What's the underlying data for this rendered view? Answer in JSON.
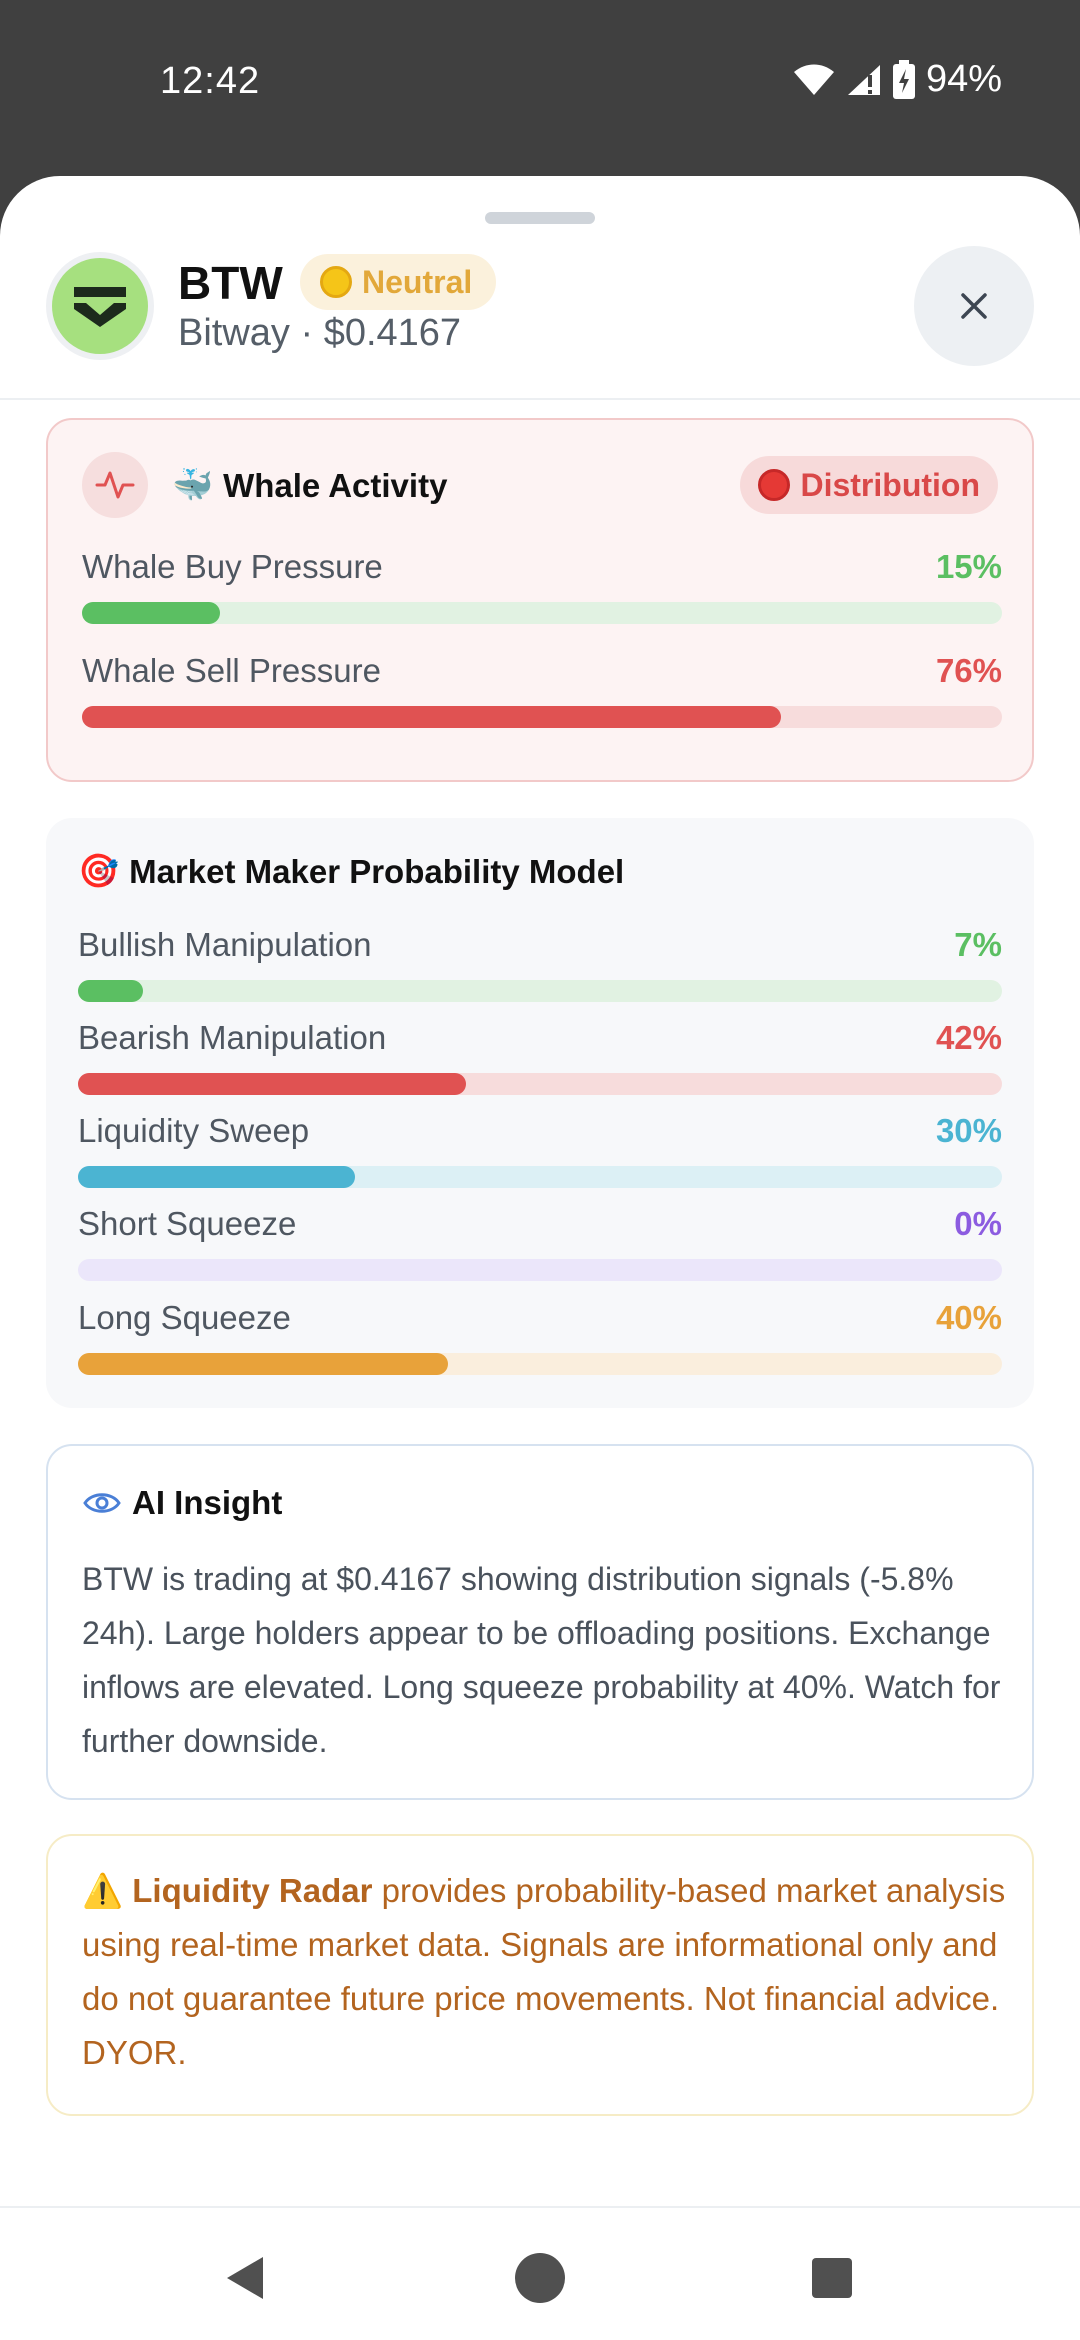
{
  "status_bar": {
    "time": "12:42",
    "battery": "94%"
  },
  "header": {
    "symbol": "BTW",
    "sentiment": "Neutral",
    "subtitle": "Bitway · $0.4167",
    "sentiment_color": "#e2a83a"
  },
  "whale": {
    "title": "Whale Activity",
    "title_emoji": "🐳",
    "badge": "Distribution",
    "metrics": [
      {
        "label": "Whale Buy Pressure",
        "value": "15%",
        "pct": 15,
        "color": "#5bbf62",
        "track": "#e1f2e2"
      },
      {
        "label": "Whale Sell Pressure",
        "value": "76%",
        "pct": 76,
        "color": "#e05252",
        "track": "#f7dcdc"
      }
    ]
  },
  "mm": {
    "title": "Market Maker Probability Model",
    "title_emoji": "🎯",
    "metrics": [
      {
        "label": "Bullish Manipulation",
        "value": "7%",
        "pct": 7,
        "color": "#5bbf62",
        "track": "#e1f2e2"
      },
      {
        "label": "Bearish Manipulation",
        "value": "42%",
        "pct": 42,
        "color": "#e05252",
        "track": "#f7dcdc"
      },
      {
        "label": "Liquidity Sweep",
        "value": "30%",
        "pct": 30,
        "color": "#4bb4d2",
        "track": "#dcf0f5"
      },
      {
        "label": "Short Squeeze",
        "value": "0%",
        "pct": 0,
        "color": "#8c5ce0",
        "track": "#ebe6fa"
      },
      {
        "label": "Long Squeeze",
        "value": "40%",
        "pct": 40,
        "color": "#e8a23a",
        "track": "#faeedd"
      }
    ]
  },
  "ai": {
    "title": "AI Insight",
    "text": "BTW is trading at $0.4167 showing distribution signals (-5.8% 24h). Large holders appear to be offloading positions. Exchange inflows are elevated. Long squeeze probability at 40%. Watch for further downside."
  },
  "disclaimer": {
    "emoji": "⚠️",
    "brand": "Liquidity Radar",
    "text": " provides probability-based market analysis using real-time market data. Signals are informational only and do not guarantee future price movements. Not financial advice. DYOR."
  },
  "icons": {
    "close": "close-icon",
    "whale_chip": "pulse-icon",
    "ai": "eye-icon",
    "nav_back": "back-triangle-icon",
    "nav_home": "home-circle-icon",
    "nav_recents": "recents-square-icon"
  }
}
